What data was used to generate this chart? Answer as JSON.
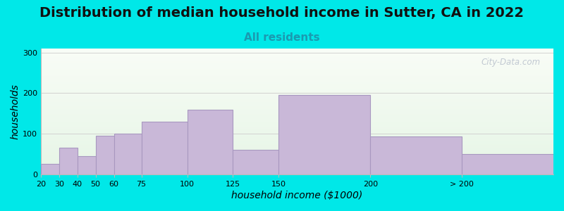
{
  "title": "Distribution of median household income in Sutter, CA in 2022",
  "subtitle": "All residents",
  "xlabel": "household income ($1000)",
  "ylabel": "households",
  "tick_labels": [
    "20",
    "30",
    "40",
    "50",
    "60",
    "75",
    "100",
    "125",
    "150",
    "200",
    "> 200"
  ],
  "bar_heights": [
    25,
    65,
    45,
    95,
    100,
    130,
    160,
    60,
    195,
    93,
    50
  ],
  "bar_color": "#c9b8d8",
  "bar_edge_color": "#a898c0",
  "background_outer": "#00e8e8",
  "ylim": [
    0,
    310
  ],
  "yticks": [
    0,
    100,
    200,
    300
  ],
  "title_fontsize": 14,
  "subtitle_fontsize": 11,
  "subtitle_color": "#1a9ab0",
  "axis_label_fontsize": 10,
  "watermark_text": "City-Data.com",
  "watermark_color": "#b8c0cc",
  "tick_positions": [
    0,
    1,
    2,
    3,
    4,
    5.5,
    8,
    10.5,
    13,
    18,
    23,
    28
  ],
  "bar_lefts": [
    0,
    1,
    2,
    3,
    4,
    5.5,
    8,
    10.5,
    13,
    18,
    23
  ],
  "bar_widths": [
    1,
    1,
    1,
    1,
    1.5,
    2.5,
    2.5,
    2.5,
    5,
    5,
    5
  ]
}
